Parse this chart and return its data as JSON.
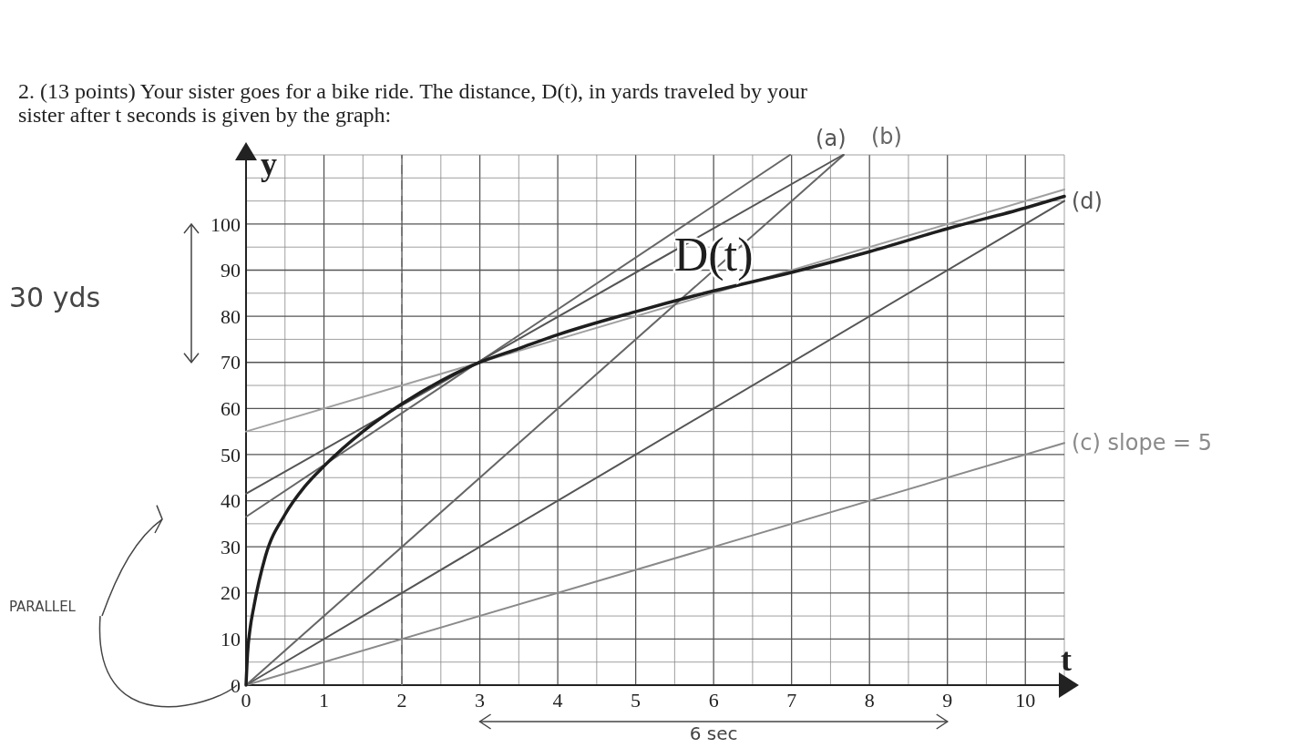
{
  "chart_data": {
    "type": "line",
    "title": "2. (13 points) Your sister goes for a bike ride. The distance, D(t), in yards traveled by your sister after t seconds is given by the graph:",
    "xlabel": "t",
    "ylabel": "y",
    "xlim": [
      0,
      10.5
    ],
    "ylim": [
      0,
      115
    ],
    "xticks": [
      0,
      1,
      2,
      3,
      4,
      5,
      6,
      7,
      8,
      9,
      10
    ],
    "yticks": [
      0,
      10,
      20,
      30,
      40,
      50,
      60,
      70,
      80,
      90,
      100
    ],
    "grid": true,
    "marker": "none",
    "series": [
      {
        "name": "D(t)",
        "color": "#1e1e1e",
        "x": [
          0,
          0.02,
          0.05,
          0.1,
          0.25,
          0.5,
          0.75,
          1,
          1.5,
          2,
          2.5,
          3,
          3.5,
          4,
          5,
          6,
          7,
          8,
          9,
          10,
          10.5
        ],
        "values": [
          0,
          7,
          12,
          17,
          28,
          37,
          43,
          47.5,
          55,
          61,
          66,
          70,
          73,
          76,
          81,
          85.5,
          89.5,
          94,
          99,
          103.5,
          106
        ]
      },
      {
        "name": "(a)",
        "color": "#555555",
        "x": [
          0,
          7.66
        ],
        "values": [
          41.5,
          115
        ]
      },
      {
        "color": "#666666",
        "x": [
          0,
          6.98
        ],
        "values": [
          36.5,
          115
        ]
      },
      {
        "name": "(b)",
        "color": "#666666",
        "x": [
          0,
          7.67
        ],
        "values": [
          0,
          115
        ]
      },
      {
        "name": "(d)",
        "color": "#555555",
        "x": [
          0,
          10.5
        ],
        "values": [
          0,
          105
        ]
      },
      {
        "color": "#a0a0a0",
        "x": [
          0,
          10.5
        ],
        "values": [
          55,
          107.5
        ]
      },
      {
        "name": "(c) slope = 5",
        "color": "#8a8a8a",
        "x": [
          0,
          10.5
        ],
        "values": [
          0,
          52.5
        ]
      }
    ],
    "ref_lines": [
      {
        "axis": "x",
        "value": 2,
        "color": "#777777",
        "line_style": "dashed"
      }
    ],
    "annotations": [
      "30 yds",
      "PARALLEL",
      "6 sec"
    ]
  }
}
